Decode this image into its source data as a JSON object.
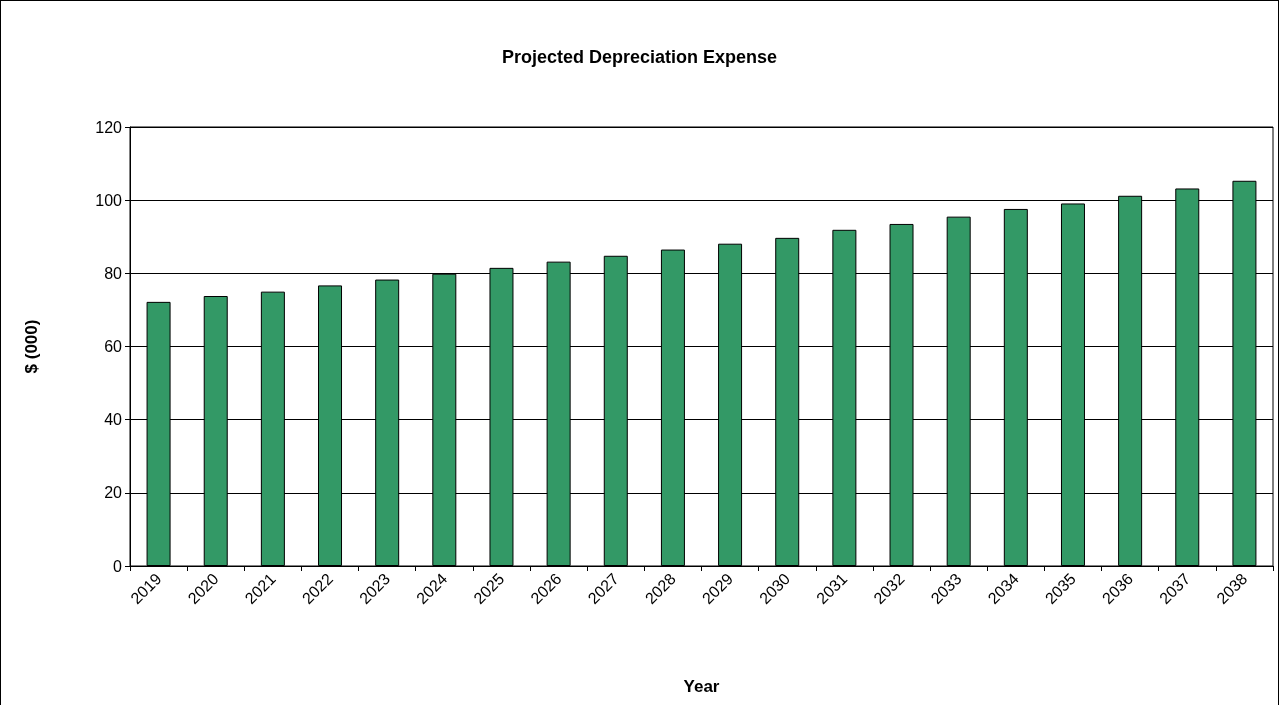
{
  "chart_data": {
    "type": "bar",
    "title": "Projected Depreciation Expense",
    "xlabel": "Year",
    "ylabel": "$ (000)",
    "categories": [
      "2019",
      "2020",
      "2021",
      "2022",
      "2023",
      "2024",
      "2025",
      "2026",
      "2027",
      "2028",
      "2029",
      "2030",
      "2031",
      "2032",
      "2033",
      "2034",
      "2035",
      "2036",
      "2037",
      "2038"
    ],
    "values": [
      72.2,
      73.8,
      75.0,
      76.7,
      78.3,
      79.9,
      81.5,
      83.2,
      84.8,
      86.5,
      88.1,
      89.7,
      91.9,
      93.5,
      95.5,
      97.6,
      99.1,
      101.2,
      103.2,
      105.3
    ],
    "color": "#339966",
    "ylim": [
      0,
      120
    ],
    "yticks": [
      0,
      20,
      40,
      60,
      80,
      100,
      120
    ],
    "grid": "y"
  }
}
